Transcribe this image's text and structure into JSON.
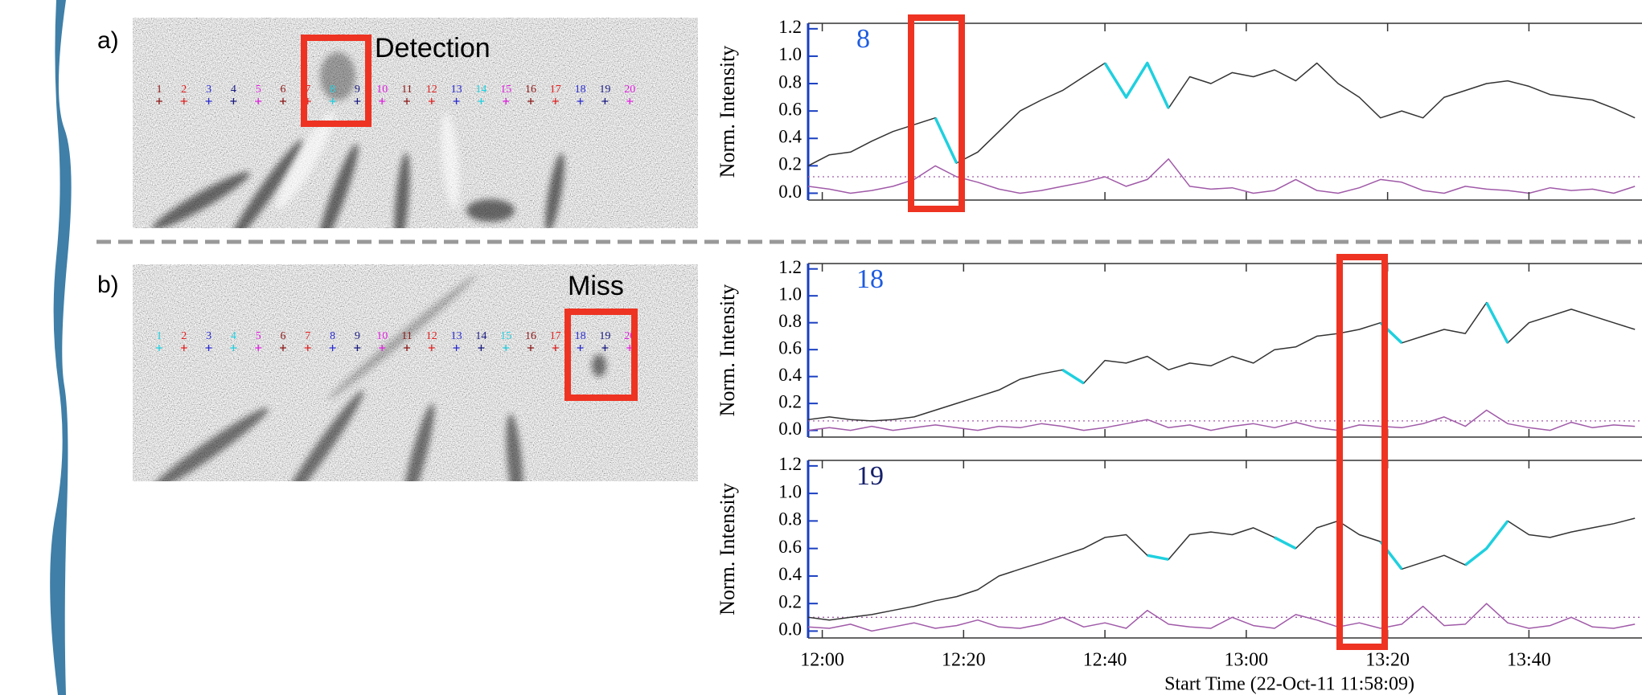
{
  "panels": [
    {
      "label": "a)",
      "note": "Detection",
      "markers": {
        "labels": [
          "1",
          "2",
          "3",
          "4",
          "5",
          "6",
          "7",
          "8",
          "9",
          "10",
          "11",
          "12",
          "13",
          "14",
          "15",
          "16",
          "17",
          "18",
          "19",
          "20"
        ],
        "colors": [
          "#8b1a1a",
          "#e02020",
          "#2a2ad0",
          "#1a1a80",
          "#e020e0",
          "#8b1a1a",
          "#e02020",
          "#20d0e0",
          "#1a1a80",
          "#e020e0",
          "#8b1a1a",
          "#e02020",
          "#2a2ad0",
          "#20d0e0",
          "#e020e0",
          "#8b1a1a",
          "#e02020",
          "#2a2ad0",
          "#1a1a80",
          "#e020e0"
        ]
      }
    },
    {
      "label": "b)",
      "note": "Miss",
      "markers": {
        "labels": [
          "1",
          "2",
          "3",
          "4",
          "5",
          "6",
          "7",
          "8",
          "9",
          "10",
          "11",
          "12",
          "13",
          "14",
          "15",
          "16",
          "17",
          "18",
          "19",
          "20"
        ],
        "colors": [
          "#20d0e0",
          "#e02020",
          "#2a2ad0",
          "#20d0e0",
          "#e020e0",
          "#8b1a1a",
          "#e02020",
          "#2a2ad0",
          "#1a1a80",
          "#e020e0",
          "#8b1a1a",
          "#e02020",
          "#2a2ad0",
          "#1a1a80",
          "#20d0e0",
          "#8b1a1a",
          "#e02020",
          "#2a2ad0",
          "#1a1a80",
          "#e020e0"
        ]
      }
    }
  ],
  "chart_data": [
    {
      "type": "line",
      "label": "8",
      "label_color": "#1e5ce0",
      "ylabel": "Norm. Intensity",
      "x": [
        "11:58",
        "12:01",
        "12:04",
        "12:07",
        "12:10",
        "12:13",
        "12:16",
        "12:19",
        "12:22",
        "12:25",
        "12:28",
        "12:31",
        "12:34",
        "12:37",
        "12:40",
        "12:43",
        "12:46",
        "12:49",
        "12:52",
        "12:55",
        "12:58",
        "13:01",
        "13:04",
        "13:07",
        "13:10",
        "13:13",
        "13:16",
        "13:19",
        "13:22",
        "13:25",
        "13:28",
        "13:31",
        "13:34",
        "13:37",
        "13:40",
        "13:43",
        "13:46",
        "13:49",
        "13:52",
        "13:55"
      ],
      "xlim": [
        "11:58",
        "13:56"
      ],
      "ylim": [
        -0.05,
        1.24
      ],
      "yticks": [
        {
          "value": 0,
          "label": "0.0"
        },
        0.2,
        0.4,
        0.6,
        0.8,
        {
          "value": 1,
          "label": "1.0"
        },
        1.2
      ],
      "threshold": 0.12,
      "series": [
        {
          "color": "#333333",
          "values": [
            0.2,
            0.28,
            0.3,
            0.38,
            0.45,
            0.5,
            0.55,
            0.22,
            0.3,
            0.45,
            0.6,
            0.68,
            0.75,
            0.85,
            0.95,
            0.7,
            0.95,
            0.62,
            0.85,
            0.8,
            0.88,
            0.85,
            0.9,
            0.82,
            0.95,
            0.8,
            0.7,
            0.55,
            0.6,
            0.55,
            0.7,
            0.75,
            0.8,
            0.82,
            0.78,
            0.72,
            0.7,
            0.68,
            0.62,
            0.55
          ]
        },
        {
          "color": "#1fd0df",
          "values": [
            null,
            null,
            null,
            null,
            null,
            null,
            0.55,
            0.22,
            null,
            null,
            null,
            null,
            null,
            null,
            0.95,
            0.7,
            0.95,
            0.62,
            null,
            null,
            null,
            null,
            null,
            null,
            null,
            null,
            null,
            null,
            null,
            null,
            null,
            null,
            null,
            null,
            null,
            null,
            null,
            null,
            null,
            null
          ]
        },
        {
          "color": "#a05aa8",
          "values": [
            0.05,
            0.03,
            0,
            0.02,
            0.05,
            0.1,
            0.2,
            0.12,
            0.08,
            0.03,
            0,
            0.02,
            0.05,
            0.08,
            0.12,
            0.05,
            0.1,
            0.25,
            0.05,
            0.03,
            0.04,
            0,
            0.02,
            0.1,
            0.02,
            0,
            0.04,
            0.1,
            0.08,
            0.02,
            0,
            0.05,
            0.03,
            0.02,
            0,
            0.04,
            0.02,
            0.03,
            0,
            0.05
          ]
        }
      ]
    },
    {
      "type": "line",
      "label": "18",
      "label_color": "#1e5ce0",
      "ylabel": "Norm. Intensity",
      "x": [
        "11:58",
        "12:01",
        "12:04",
        "12:07",
        "12:10",
        "12:13",
        "12:16",
        "12:19",
        "12:22",
        "12:25",
        "12:28",
        "12:31",
        "12:34",
        "12:37",
        "12:40",
        "12:43",
        "12:46",
        "12:49",
        "12:52",
        "12:55",
        "12:58",
        "13:01",
        "13:04",
        "13:07",
        "13:10",
        "13:13",
        "13:16",
        "13:19",
        "13:22",
        "13:25",
        "13:28",
        "13:31",
        "13:34",
        "13:37",
        "13:40",
        "13:43",
        "13:46",
        "13:49",
        "13:52",
        "13:55"
      ],
      "xlim": [
        "11:58",
        "13:56"
      ],
      "ylim": [
        -0.05,
        1.24
      ],
      "yticks": [
        {
          "value": 0,
          "label": "0.0"
        },
        0.2,
        0.4,
        0.6,
        0.8,
        {
          "value": 1,
          "label": "1.0"
        },
        1.2
      ],
      "threshold": 0.07,
      "series": [
        {
          "color": "#333333",
          "values": [
            0.08,
            0.1,
            0.08,
            0.07,
            0.08,
            0.1,
            0.15,
            0.2,
            0.25,
            0.3,
            0.38,
            0.42,
            0.45,
            0.35,
            0.52,
            0.5,
            0.55,
            0.45,
            0.5,
            0.48,
            0.55,
            0.5,
            0.6,
            0.62,
            0.7,
            0.72,
            0.75,
            0.8,
            0.65,
            0.7,
            0.75,
            0.72,
            0.95,
            0.65,
            0.8,
            0.85,
            0.9,
            0.85,
            0.8,
            0.75
          ]
        },
        {
          "color": "#1fd0df",
          "values": [
            null,
            null,
            null,
            null,
            null,
            null,
            null,
            null,
            null,
            null,
            null,
            null,
            0.45,
            0.35,
            null,
            null,
            null,
            null,
            null,
            null,
            null,
            null,
            null,
            null,
            null,
            null,
            null,
            0.8,
            0.65,
            null,
            null,
            null,
            0.95,
            0.65,
            null,
            null,
            null,
            null,
            null,
            null
          ]
        },
        {
          "color": "#a05aa8",
          "values": [
            0,
            0.02,
            0,
            0.03,
            0,
            0.02,
            0.04,
            0.02,
            0,
            0.03,
            0.02,
            0.05,
            0.03,
            0,
            0.02,
            0.05,
            0.08,
            0.02,
            0.04,
            0,
            0.03,
            0.05,
            0.02,
            0.06,
            0.02,
            0,
            0.04,
            0.03,
            0.02,
            0.05,
            0.1,
            0.03,
            0.15,
            0.05,
            0.02,
            0,
            0.06,
            0.02,
            0.04,
            0.03
          ]
        }
      ]
    },
    {
      "type": "line",
      "label": "19",
      "label_color": "#15206a",
      "ylabel": "Norm. Intensity",
      "x": [
        "11:58",
        "12:01",
        "12:04",
        "12:07",
        "12:10",
        "12:13",
        "12:16",
        "12:19",
        "12:22",
        "12:25",
        "12:28",
        "12:31",
        "12:34",
        "12:37",
        "12:40",
        "12:43",
        "12:46",
        "12:49",
        "12:52",
        "12:55",
        "12:58",
        "13:01",
        "13:04",
        "13:07",
        "13:10",
        "13:13",
        "13:16",
        "13:19",
        "13:22",
        "13:25",
        "13:28",
        "13:31",
        "13:34",
        "13:37",
        "13:40",
        "13:43",
        "13:46",
        "13:49",
        "13:52",
        "13:55"
      ],
      "xlim": [
        "11:58",
        "13:56"
      ],
      "ylim": [
        -0.05,
        1.24
      ],
      "yticks": [
        {
          "value": 0,
          "label": "0.0"
        },
        0.2,
        0.4,
        0.6,
        0.8,
        {
          "value": 1,
          "label": "1.0"
        },
        1.2
      ],
      "xticks": [
        "12:00",
        "12:20",
        "12:40",
        "13:00",
        "13:20",
        "13:40"
      ],
      "xlabel": "Start Time (22-Oct-11 11:58:09)",
      "threshold": 0.1,
      "series": [
        {
          "color": "#333333",
          "values": [
            0.1,
            0.08,
            0.1,
            0.12,
            0.15,
            0.18,
            0.22,
            0.25,
            0.3,
            0.4,
            0.45,
            0.5,
            0.55,
            0.6,
            0.68,
            0.7,
            0.55,
            0.52,
            0.7,
            0.72,
            0.7,
            0.75,
            0.68,
            0.6,
            0.75,
            0.8,
            0.7,
            0.65,
            0.45,
            0.5,
            0.55,
            0.48,
            0.6,
            0.8,
            0.7,
            0.68,
            0.72,
            0.75,
            0.78,
            0.82
          ]
        },
        {
          "color": "#1fd0df",
          "values": [
            null,
            null,
            null,
            null,
            null,
            null,
            null,
            null,
            null,
            null,
            null,
            null,
            null,
            null,
            null,
            null,
            0.55,
            0.52,
            null,
            null,
            null,
            null,
            0.68,
            0.6,
            null,
            null,
            null,
            0.65,
            0.45,
            null,
            null,
            0.48,
            0.6,
            0.8,
            null,
            null,
            null,
            null,
            null,
            null
          ]
        },
        {
          "color": "#a05aa8",
          "values": [
            0.03,
            0.02,
            0.05,
            0,
            0.03,
            0.06,
            0.02,
            0.04,
            0.08,
            0.03,
            0.02,
            0.05,
            0.1,
            0.03,
            0.06,
            0.02,
            0.15,
            0.05,
            0.03,
            0.02,
            0.1,
            0.04,
            0.02,
            0.12,
            0.08,
            0.03,
            0.06,
            0.02,
            0.05,
            0.18,
            0.04,
            0.05,
            0.2,
            0.06,
            0.02,
            0.04,
            0.1,
            0.03,
            0.02,
            0.05
          ]
        }
      ]
    }
  ]
}
